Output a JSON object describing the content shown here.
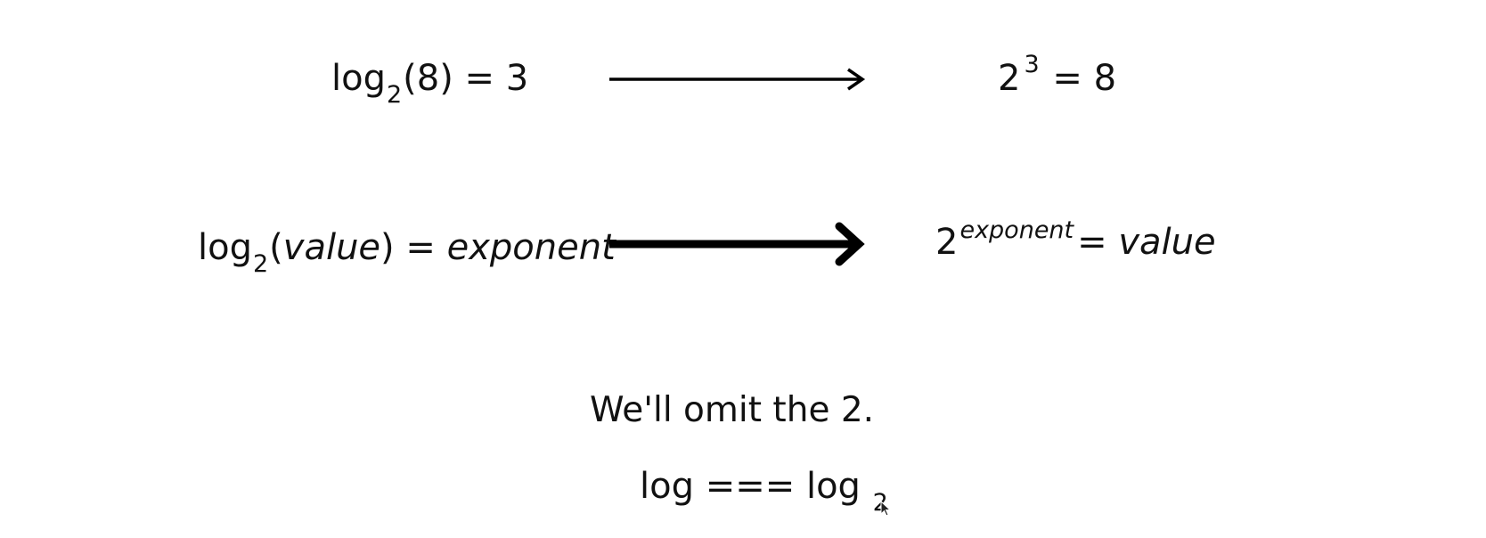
{
  "row1": {
    "left": {
      "fn": "log",
      "base": "2",
      "arg": "(8)",
      "rest": " = 3"
    },
    "right": {
      "base": "2",
      "exponent": "3",
      "rest": " = 8"
    }
  },
  "row2": {
    "left": {
      "fn": "log",
      "base": "2",
      "open": "(",
      "arg": "value",
      "close": ")",
      "eq": " = ",
      "result": "exponent"
    },
    "right": {
      "base": "2",
      "exponent": "exponent",
      "eq": "= ",
      "result": "value"
    }
  },
  "caption": "We'll omit the 2.",
  "equivalence": {
    "lhs": "log === log",
    "base": "2"
  },
  "colors": {
    "text": "#111111",
    "arrow": "#000000",
    "background": "#ffffff"
  }
}
